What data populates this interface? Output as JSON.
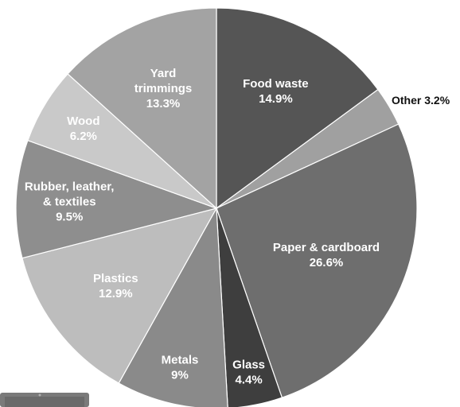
{
  "chart_data": {
    "type": "pie",
    "title": "",
    "start_angle_deg": 0,
    "direction": "clockwise",
    "slices": [
      {
        "label": [
          "Food waste",
          "14.9%"
        ],
        "value": 14.9,
        "color": "#555555",
        "text_color": "#ffffff"
      },
      {
        "label": [
          "Other 3.2%"
        ],
        "value": 3.2,
        "color": "#a0a0a0",
        "text_color": "#111111",
        "outside": true
      },
      {
        "label": [
          "Paper & cardboard",
          "26.6%"
        ],
        "value": 26.6,
        "color": "#6e6e6e",
        "text_color": "#ffffff"
      },
      {
        "label": [
          "Glass",
          "4.4%"
        ],
        "value": 4.4,
        "color": "#3e3e3e",
        "text_color": "#ffffff"
      },
      {
        "label": [
          "Metals",
          "9%"
        ],
        "value": 9.0,
        "color": "#8a8a8a",
        "text_color": "#ffffff"
      },
      {
        "label": [
          "Plastics",
          "12.9%"
        ],
        "value": 12.9,
        "color": "#bdbdbd",
        "text_color": "#ffffff"
      },
      {
        "label": [
          "Rubber, leather,",
          "& textiles",
          "9.5%"
        ],
        "value": 9.5,
        "color": "#8e8e8e",
        "text_color": "#ffffff"
      },
      {
        "label": [
          "Wood",
          "6.2%"
        ],
        "value": 6.2,
        "color": "#c9c9c9",
        "text_color": "#ffffff"
      },
      {
        "label": [
          "Yard",
          "trimmings",
          "13.3%"
        ],
        "value": 13.3,
        "color": "#a3a3a3",
        "text_color": "#ffffff"
      }
    ]
  }
}
